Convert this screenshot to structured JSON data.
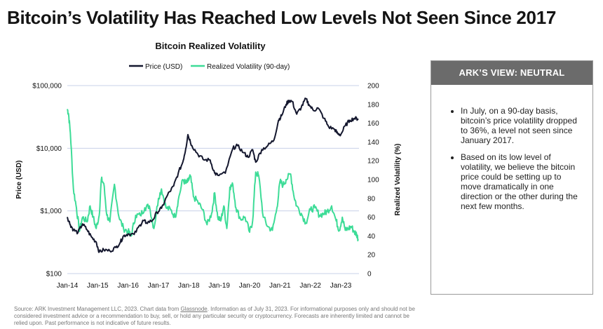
{
  "page": {
    "title": "Bitcoin’s Volatility Has Reached Low Levels Not Seen Since 2017",
    "source_prefix": "Source: ARK Investment Management LLC, 2023. Chart data from ",
    "source_link": "Glassnode",
    "source_suffix": ". Information as of July 31, 2023. For informational purposes only and should not be considered investment advice or a recommendation to buy, sell, or hold any particular security or cryptocurrency. Forecasts are inherently limited and cannot be relied upon. Past performance is not indicative of future results."
  },
  "side": {
    "header": "ARK’S VIEW: NEUTRAL",
    "bullets": [
      "In July, on a 90-day basis, bitcoin’s price volatility dropped to 36%, a level not seen since January 2017.",
      "Based on its low level of volatility, we believe the bitcoin price could be setting up to move dramatically in one direction or the other during the next few months."
    ]
  },
  "colors": {
    "price": "#14172e",
    "volatility": "#3ddc97",
    "grid": "#c8d0e8"
  },
  "chart_data": {
    "type": "line",
    "title": "Bitcoin Realized Volatility",
    "x_range": [
      2014.0,
      2023.6
    ],
    "x_ticks": [
      {
        "label": "Jan-14",
        "x": 2014
      },
      {
        "label": "Jan-15",
        "x": 2015
      },
      {
        "label": "Jan-16",
        "x": 2016
      },
      {
        "label": "Jan-17",
        "x": 2017
      },
      {
        "label": "Jan-18",
        "x": 2018
      },
      {
        "label": "Jan-19",
        "x": 2019
      },
      {
        "label": "Jan-20",
        "x": 2020
      },
      {
        "label": "Jan-21",
        "x": 2021
      },
      {
        "label": "Jan-22",
        "x": 2022
      },
      {
        "label": "Jan-23",
        "x": 2023
      }
    ],
    "y_left": {
      "label": "Price (USD)",
      "scale": "log",
      "range": [
        100,
        100000
      ],
      "ticks": [
        {
          "label": "$100",
          "v": 100
        },
        {
          "label": "$1,000",
          "v": 1000
        },
        {
          "label": "$10,000",
          "v": 10000
        },
        {
          "label": "$100,000",
          "v": 100000
        }
      ]
    },
    "y_right": {
      "label": "Realized Volatility (%)",
      "scale": "linear",
      "range": [
        0,
        200
      ],
      "ticks": [
        0,
        20,
        40,
        60,
        80,
        100,
        120,
        140,
        160,
        180,
        200
      ]
    },
    "series": [
      {
        "name": "Price (USD)",
        "axis": "left",
        "x": [
          2014.0,
          2014.1,
          2014.2,
          2014.35,
          2014.5,
          2014.65,
          2014.8,
          2014.95,
          2015.05,
          2015.2,
          2015.4,
          2015.6,
          2015.75,
          2015.85,
          2016.0,
          2016.2,
          2016.4,
          2016.5,
          2016.6,
          2016.8,
          2016.95,
          2017.1,
          2017.3,
          2017.5,
          2017.65,
          2017.8,
          2017.9,
          2017.97,
          2018.1,
          2018.3,
          2018.5,
          2018.7,
          2018.85,
          2018.95,
          2019.2,
          2019.45,
          2019.6,
          2019.8,
          2019.95,
          2020.1,
          2020.2,
          2020.4,
          2020.6,
          2020.8,
          2020.95,
          2021.05,
          2021.2,
          2021.3,
          2021.4,
          2021.55,
          2021.7,
          2021.85,
          2021.95,
          2022.1,
          2022.25,
          2022.45,
          2022.6,
          2022.8,
          2022.9,
          2023.0,
          2023.15,
          2023.3,
          2023.45,
          2023.58
        ],
        "values": [
          800,
          600,
          500,
          450,
          620,
          500,
          380,
          320,
          220,
          240,
          230,
          260,
          320,
          400,
          430,
          420,
          600,
          700,
          650,
          700,
          950,
          1100,
          1800,
          2500,
          4000,
          6000,
          10000,
          16500,
          11000,
          8000,
          6500,
          6500,
          4000,
          3700,
          4000,
          10000,
          11000,
          8500,
          7200,
          9500,
          6000,
          9500,
          11000,
          13500,
          28000,
          33000,
          50000,
          58000,
          56000,
          35000,
          45000,
          62000,
          50000,
          40000,
          44000,
          30000,
          22000,
          20000,
          17000,
          16500,
          23000,
          28000,
          30000,
          29500
        ]
      },
      {
        "name": "Realized Volatility (90-day)",
        "axis": "right",
        "x": [
          2014.0,
          2014.04,
          2014.1,
          2014.2,
          2014.3,
          2014.4,
          2014.5,
          2014.65,
          2014.75,
          2014.85,
          2014.95,
          2015.05,
          2015.12,
          2015.2,
          2015.3,
          2015.4,
          2015.55,
          2015.7,
          2015.85,
          2016.0,
          2016.1,
          2016.25,
          2016.4,
          2016.55,
          2016.7,
          2016.85,
          2017.0,
          2017.1,
          2017.25,
          2017.4,
          2017.55,
          2017.65,
          2017.8,
          2017.9,
          2017.97,
          2018.05,
          2018.15,
          2018.3,
          2018.45,
          2018.6,
          2018.75,
          2018.85,
          2018.95,
          2019.05,
          2019.15,
          2019.25,
          2019.35,
          2019.45,
          2019.55,
          2019.7,
          2019.85,
          2020.0,
          2020.1,
          2020.2,
          2020.3,
          2020.45,
          2020.6,
          2020.75,
          2020.9,
          2021.0,
          2021.1,
          2021.2,
          2021.35,
          2021.45,
          2021.55,
          2021.7,
          2021.85,
          2022.0,
          2022.15,
          2022.3,
          2022.45,
          2022.55,
          2022.7,
          2022.85,
          2022.95,
          2023.05,
          2023.15,
          2023.25,
          2023.35,
          2023.45,
          2023.52,
          2023.58
        ],
        "values": [
          175,
          170,
          150,
          90,
          70,
          45,
          60,
          55,
          72,
          60,
          48,
          62,
          100,
          96,
          62,
          55,
          95,
          60,
          48,
          45,
          40,
          62,
          62,
          70,
          72,
          48,
          80,
          90,
          70,
          68,
          60,
          78,
          100,
          96,
          98,
          104,
          82,
          76,
          68,
          52,
          64,
          86,
          60,
          56,
          72,
          48,
          92,
          94,
          70,
          58,
          60,
          44,
          56,
          108,
          104,
          60,
          50,
          46,
          70,
          98,
          94,
          100,
          106,
          84,
          72,
          64,
          54,
          68,
          70,
          62,
          64,
          66,
          72,
          56,
          46,
          60,
          46,
          48,
          50,
          44,
          42,
          36
        ]
      }
    ]
  }
}
